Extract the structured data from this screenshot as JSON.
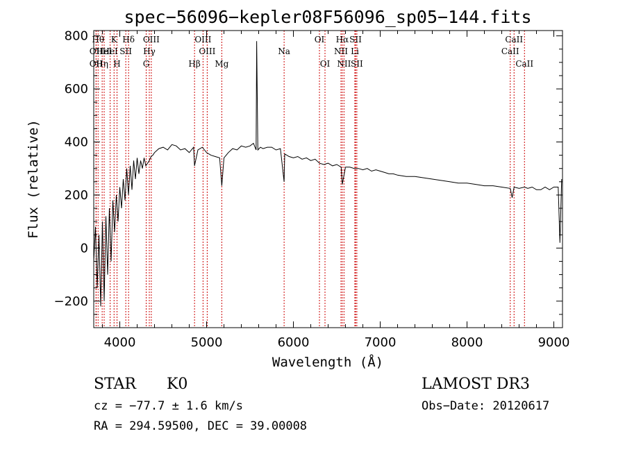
{
  "chart_data": {
    "type": "line",
    "title": "spec−56096−kepler08F56096_sp05−144.fits",
    "xlabel": "Wavelength (Å)",
    "ylabel": "Flux (relative)",
    "xlim": [
      3700,
      9100
    ],
    "ylim": [
      -300,
      820
    ],
    "xticks": [
      4000,
      5000,
      6000,
      7000,
      8000,
      9000
    ],
    "xtick_labels": [
      "4000",
      "5000",
      "6000",
      "7000",
      "8000",
      "9000"
    ],
    "yticks": [
      -200,
      0,
      200,
      400,
      600,
      800
    ],
    "ytick_labels": [
      "−200",
      "0",
      "200",
      "400",
      "600",
      "800"
    ],
    "series": [
      {
        "name": "spectrum",
        "x": [
          3700,
          3720,
          3740,
          3760,
          3780,
          3800,
          3820,
          3840,
          3860,
          3880,
          3900,
          3920,
          3940,
          3960,
          3980,
          4000,
          4020,
          4040,
          4060,
          4080,
          4100,
          4120,
          4140,
          4160,
          4180,
          4200,
          4220,
          4240,
          4260,
          4280,
          4300,
          4320,
          4340,
          4360,
          4380,
          4400,
          4450,
          4500,
          4550,
          4600,
          4650,
          4700,
          4750,
          4800,
          4850,
          4861,
          4900,
          4950,
          5000,
          5050,
          5100,
          5150,
          5175,
          5200,
          5250,
          5300,
          5350,
          5400,
          5450,
          5500,
          5540,
          5570,
          5577,
          5590,
          5620,
          5650,
          5700,
          5750,
          5800,
          5850,
          5893,
          5900,
          5950,
          6000,
          6050,
          6100,
          6150,
          6200,
          6250,
          6300,
          6350,
          6400,
          6450,
          6500,
          6550,
          6563,
          6600,
          6650,
          6700,
          6750,
          6800,
          6850,
          6900,
          6950,
          7000,
          7050,
          7100,
          7150,
          7200,
          7300,
          7400,
          7500,
          7600,
          7700,
          7800,
          7900,
          8000,
          8100,
          8200,
          8300,
          8400,
          8498,
          8520,
          8542,
          8600,
          8662,
          8700,
          8750,
          8800,
          8850,
          8900,
          8950,
          9000,
          9050,
          9070,
          9090
        ],
        "y": [
          -50,
          80,
          -150,
          50,
          -220,
          100,
          -200,
          120,
          -100,
          150,
          -50,
          180,
          60,
          200,
          100,
          230,
          150,
          260,
          180,
          300,
          200,
          310,
          220,
          330,
          260,
          340,
          280,
          330,
          300,
          340,
          310,
          320,
          330,
          345,
          350,
          360,
          375,
          380,
          370,
          390,
          385,
          370,
          375,
          360,
          380,
          310,
          370,
          380,
          360,
          350,
          345,
          340,
          235,
          340,
          360,
          375,
          370,
          385,
          380,
          385,
          395,
          370,
          780,
          370,
          380,
          375,
          380,
          380,
          370,
          375,
          250,
          355,
          345,
          340,
          345,
          335,
          340,
          330,
          335,
          320,
          315,
          320,
          310,
          315,
          305,
          240,
          305,
          305,
          300,
          300,
          295,
          300,
          290,
          295,
          290,
          285,
          280,
          280,
          275,
          270,
          270,
          265,
          260,
          255,
          250,
          245,
          245,
          240,
          235,
          235,
          230,
          225,
          190,
          230,
          225,
          230,
          225,
          230,
          220,
          220,
          230,
          220,
          230,
          230,
          20,
          260
        ]
      }
    ],
    "lines": [
      {
        "wavelength": 3750,
        "label": "Hθ",
        "row": 0
      },
      {
        "wavelength": 3727,
        "label": "OII",
        "row": 1
      },
      {
        "wavelength": 3727,
        "label": "OII",
        "row": 2
      },
      {
        "wavelength": 3797,
        "label": "Hη",
        "row": 2
      },
      {
        "wavelength": 3820,
        "label": "HeI",
        "row": 1
      },
      {
        "wavelength": 3889,
        "label": "HeI",
        "row": 1
      },
      {
        "wavelength": 3934,
        "label": "K",
        "row": 0
      },
      {
        "wavelength": 3968,
        "label": "H",
        "row": 2
      },
      {
        "wavelength": 4069,
        "label": "SII",
        "row": 1
      },
      {
        "wavelength": 4101,
        "label": "Hδ",
        "row": 0
      },
      {
        "wavelength": 4304,
        "label": "G",
        "row": 2
      },
      {
        "wavelength": 4340,
        "label": "Hγ",
        "row": 1
      },
      {
        "wavelength": 4363,
        "label": "OIII",
        "row": 0
      },
      {
        "wavelength": 4861,
        "label": "Hβ",
        "row": 2
      },
      {
        "wavelength": 4959,
        "label": "OIII",
        "row": 0
      },
      {
        "wavelength": 5007,
        "label": "OIII",
        "row": 1
      },
      {
        "wavelength": 5175,
        "label": "Mg",
        "row": 2
      },
      {
        "wavelength": 5893,
        "label": "Na",
        "row": 1
      },
      {
        "wavelength": 6300,
        "label": "OI",
        "row": 0
      },
      {
        "wavelength": 6364,
        "label": "OI",
        "row": 2
      },
      {
        "wavelength": 6548,
        "label": "NII",
        "row": 1
      },
      {
        "wavelength": 6563,
        "label": "Hα",
        "row": 0
      },
      {
        "wavelength": 6583,
        "label": "NII",
        "row": 2
      },
      {
        "wavelength": 6708,
        "label": "Li",
        "row": 1
      },
      {
        "wavelength": 6716,
        "label": "SII",
        "row": 0
      },
      {
        "wavelength": 6731,
        "label": "SII",
        "row": 2
      },
      {
        "wavelength": 8498,
        "label": "CaII",
        "row": 1
      },
      {
        "wavelength": 8542,
        "label": "CaII",
        "row": 0
      },
      {
        "wavelength": 8662,
        "label": "CaII",
        "row": 2
      }
    ]
  },
  "info": {
    "class_label": "STAR",
    "subclass": "K0",
    "survey": "LAMOST DR3",
    "cz": "cz = −77.7 ± 1.6 km/s",
    "obs_date": "Obs−Date: 20120617",
    "coords": "RA = 294.59500, DEC =  39.00008"
  },
  "colors": {
    "line_marker": "#cc0000",
    "spectrum": "#000000",
    "axes": "#000000"
  }
}
